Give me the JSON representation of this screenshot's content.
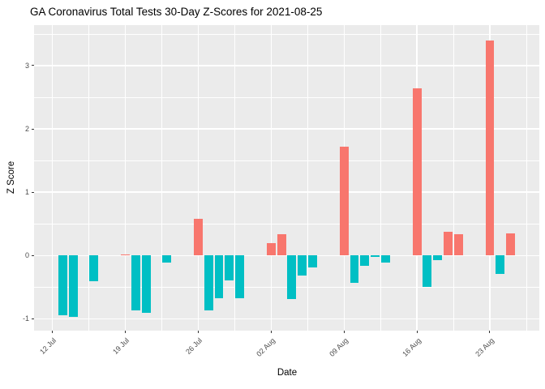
{
  "title": "GA Coronavirus Total Tests 30-Day Z-Scores for 2021-08-25",
  "chart_data": {
    "type": "bar",
    "title": "GA Coronavirus Total Tests 30-Day Z-Scores for 2021-08-25",
    "xlabel": "Date",
    "ylabel": "Z Score",
    "ylim": [
      -1.19,
      3.64
    ],
    "x_domain_days": [
      -1.75,
      46.75
    ],
    "grid": "on",
    "legend": "none",
    "y_major_ticks": [
      3,
      2,
      1,
      0,
      -1
    ],
    "y_minor_ticks": [
      3.5,
      2.5,
      1.5,
      0.5,
      -0.5
    ],
    "x_ticks": [
      {
        "label": "12 Jul",
        "day": 0
      },
      {
        "label": "19 Jul",
        "day": 7
      },
      {
        "label": "26 Jul",
        "day": 14
      },
      {
        "label": "02 Aug",
        "day": 21
      },
      {
        "label": "09 Aug",
        "day": 28
      },
      {
        "label": "16 Aug",
        "day": 35
      },
      {
        "label": "23 Aug",
        "day": 42
      }
    ],
    "x_minor_days": [
      3.5,
      10.5,
      17.5,
      24.5,
      31.5,
      38.5,
      45.5
    ],
    "bar_width_days": 0.85,
    "colors": {
      "positive": "#F8766D",
      "negative": "#00BFC4",
      "panel_bg": "#EBEBEB",
      "grid": "#FFFFFF",
      "tick_label": "#4D4D4D",
      "tick_mark": "#333333"
    },
    "bars": [
      {
        "date": "13 Jul",
        "day": 1,
        "value": -0.95
      },
      {
        "date": "14 Jul",
        "day": 2,
        "value": -0.97
      },
      {
        "date": "16 Jul",
        "day": 4,
        "value": -0.41
      },
      {
        "date": "19 Jul",
        "day": 7,
        "value": 0.02
      },
      {
        "date": "20 Jul",
        "day": 8,
        "value": -0.87
      },
      {
        "date": "21 Jul",
        "day": 9,
        "value": -0.91
      },
      {
        "date": "23 Jul",
        "day": 11,
        "value": -0.12
      },
      {
        "date": "26 Jul",
        "day": 14,
        "value": 0.58
      },
      {
        "date": "27 Jul",
        "day": 15,
        "value": -0.87
      },
      {
        "date": "28 Jul",
        "day": 16,
        "value": -0.68
      },
      {
        "date": "29 Jul",
        "day": 17,
        "value": -0.4
      },
      {
        "date": "30 Jul",
        "day": 18,
        "value": -0.68
      },
      {
        "date": "02 Aug",
        "day": 21,
        "value": 0.19
      },
      {
        "date": "03 Aug",
        "day": 22,
        "value": 0.34
      },
      {
        "date": "04 Aug",
        "day": 23,
        "value": -0.69
      },
      {
        "date": "05 Aug",
        "day": 24,
        "value": -0.32
      },
      {
        "date": "06 Aug",
        "day": 25,
        "value": -0.19
      },
      {
        "date": "09 Aug",
        "day": 28,
        "value": 1.72
      },
      {
        "date": "10 Aug",
        "day": 29,
        "value": -0.44
      },
      {
        "date": "11 Aug",
        "day": 30,
        "value": -0.16
      },
      {
        "date": "12 Aug",
        "day": 31,
        "value": -0.02
      },
      {
        "date": "13 Aug",
        "day": 32,
        "value": -0.11
      },
      {
        "date": "16 Aug",
        "day": 35,
        "value": 2.64
      },
      {
        "date": "17 Aug",
        "day": 36,
        "value": -0.5
      },
      {
        "date": "18 Aug",
        "day": 37,
        "value": -0.07
      },
      {
        "date": "19 Aug",
        "day": 38,
        "value": 0.37
      },
      {
        "date": "20 Aug",
        "day": 39,
        "value": 0.33
      },
      {
        "date": "23 Aug",
        "day": 42,
        "value": 3.4
      },
      {
        "date": "24 Aug",
        "day": 43,
        "value": -0.29
      },
      {
        "date": "25 Aug",
        "day": 44,
        "value": 0.35
      }
    ]
  }
}
